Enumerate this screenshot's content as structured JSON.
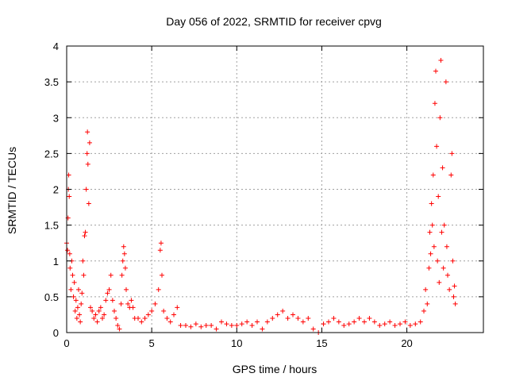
{
  "chart_data": {
    "type": "scatter",
    "title": "Day 056 of 2022, SRMTID for receiver cpvg",
    "xlabel": "GPS time / hours",
    "ylabel": "SRMTID / TECUs",
    "xlim": [
      0,
      24.5
    ],
    "ylim": [
      0,
      4
    ],
    "x_ticks": [
      0,
      5,
      10,
      15,
      20
    ],
    "x_tick_labels": [
      "0",
      "5",
      "10",
      "15",
      "20"
    ],
    "y_ticks": [
      0,
      0.5,
      1,
      1.5,
      2,
      2.5,
      3,
      3.5,
      4
    ],
    "y_tick_labels": [
      "0",
      "0.5",
      "1",
      "1.5",
      "2",
      "2.5",
      "3",
      "3.5",
      "4"
    ],
    "grid": true,
    "marker": "+",
    "color": "#ff0000",
    "series": [
      {
        "name": "SRMTID",
        "points": [
          [
            0.0,
            1.25
          ],
          [
            0.05,
            1.15
          ],
          [
            0.08,
            1.6
          ],
          [
            0.1,
            2.0
          ],
          [
            0.12,
            2.2
          ],
          [
            0.15,
            1.9
          ],
          [
            0.18,
            1.1
          ],
          [
            0.2,
            0.9
          ],
          [
            0.25,
            0.6
          ],
          [
            0.3,
            1.0
          ],
          [
            0.35,
            0.8
          ],
          [
            0.4,
            0.5
          ],
          [
            0.45,
            0.7
          ],
          [
            0.5,
            0.3
          ],
          [
            0.55,
            0.45
          ],
          [
            0.6,
            0.2
          ],
          [
            0.65,
            0.35
          ],
          [
            0.7,
            0.6
          ],
          [
            0.75,
            0.25
          ],
          [
            0.8,
            0.15
          ],
          [
            0.85,
            0.4
          ],
          [
            0.9,
            0.55
          ],
          [
            0.95,
            1.0
          ],
          [
            1.0,
            0.8
          ],
          [
            1.05,
            1.35
          ],
          [
            1.1,
            1.4
          ],
          [
            1.15,
            2.0
          ],
          [
            1.2,
            2.5
          ],
          [
            1.22,
            2.8
          ],
          [
            1.25,
            2.35
          ],
          [
            1.3,
            1.8
          ],
          [
            1.35,
            2.65
          ],
          [
            1.4,
            0.35
          ],
          [
            1.5,
            0.3
          ],
          [
            1.6,
            0.2
          ],
          [
            1.7,
            0.25
          ],
          [
            1.8,
            0.15
          ],
          [
            1.9,
            0.3
          ],
          [
            2.0,
            0.35
          ],
          [
            2.1,
            0.2
          ],
          [
            2.2,
            0.25
          ],
          [
            2.3,
            0.45
          ],
          [
            2.4,
            0.55
          ],
          [
            2.5,
            0.6
          ],
          [
            2.6,
            0.8
          ],
          [
            2.7,
            0.45
          ],
          [
            2.8,
            0.3
          ],
          [
            2.9,
            0.2
          ],
          [
            3.0,
            0.1
          ],
          [
            3.1,
            0.05
          ],
          [
            3.2,
            0.4
          ],
          [
            3.25,
            0.8
          ],
          [
            3.3,
            1.0
          ],
          [
            3.35,
            1.2
          ],
          [
            3.4,
            1.1
          ],
          [
            3.45,
            0.9
          ],
          [
            3.5,
            0.6
          ],
          [
            3.6,
            0.4
          ],
          [
            3.7,
            0.35
          ],
          [
            3.8,
            0.45
          ],
          [
            3.9,
            0.35
          ],
          [
            4.0,
            0.2
          ],
          [
            4.2,
            0.2
          ],
          [
            4.4,
            0.15
          ],
          [
            4.6,
            0.2
          ],
          [
            4.8,
            0.25
          ],
          [
            5.0,
            0.3
          ],
          [
            5.2,
            0.4
          ],
          [
            5.4,
            0.6
          ],
          [
            5.5,
            1.15
          ],
          [
            5.55,
            1.25
          ],
          [
            5.6,
            0.8
          ],
          [
            5.7,
            0.3
          ],
          [
            5.9,
            0.2
          ],
          [
            6.1,
            0.15
          ],
          [
            6.3,
            0.25
          ],
          [
            6.5,
            0.35
          ],
          [
            6.7,
            0.1
          ],
          [
            7.0,
            0.1
          ],
          [
            7.3,
            0.08
          ],
          [
            7.6,
            0.12
          ],
          [
            7.9,
            0.08
          ],
          [
            8.2,
            0.1
          ],
          [
            8.5,
            0.1
          ],
          [
            8.8,
            0.05
          ],
          [
            9.1,
            0.15
          ],
          [
            9.4,
            0.12
          ],
          [
            9.7,
            0.1
          ],
          [
            10.0,
            0.1
          ],
          [
            10.3,
            0.12
          ],
          [
            10.6,
            0.15
          ],
          [
            10.9,
            0.1
          ],
          [
            11.2,
            0.15
          ],
          [
            11.5,
            0.05
          ],
          [
            11.8,
            0.15
          ],
          [
            12.1,
            0.2
          ],
          [
            12.4,
            0.25
          ],
          [
            12.7,
            0.3
          ],
          [
            13.0,
            0.2
          ],
          [
            13.3,
            0.25
          ],
          [
            13.6,
            0.2
          ],
          [
            13.9,
            0.15
          ],
          [
            14.2,
            0.2
          ],
          [
            14.5,
            0.05
          ],
          [
            14.8,
            0.0
          ],
          [
            15.1,
            0.12
          ],
          [
            15.4,
            0.15
          ],
          [
            15.7,
            0.2
          ],
          [
            16.0,
            0.15
          ],
          [
            16.3,
            0.1
          ],
          [
            16.6,
            0.12
          ],
          [
            16.9,
            0.15
          ],
          [
            17.2,
            0.2
          ],
          [
            17.5,
            0.15
          ],
          [
            17.8,
            0.2
          ],
          [
            18.1,
            0.15
          ],
          [
            18.4,
            0.1
          ],
          [
            18.7,
            0.12
          ],
          [
            19.0,
            0.15
          ],
          [
            19.3,
            0.1
          ],
          [
            19.6,
            0.12
          ],
          [
            19.9,
            0.15
          ],
          [
            20.2,
            0.1
          ],
          [
            20.5,
            0.12
          ],
          [
            20.8,
            0.15
          ],
          [
            21.0,
            0.3
          ],
          [
            21.1,
            0.6
          ],
          [
            21.2,
            0.4
          ],
          [
            21.3,
            0.9
          ],
          [
            21.35,
            1.4
          ],
          [
            21.4,
            1.1
          ],
          [
            21.45,
            1.8
          ],
          [
            21.5,
            1.5
          ],
          [
            21.55,
            2.2
          ],
          [
            21.6,
            1.2
          ],
          [
            21.65,
            3.2
          ],
          [
            21.7,
            3.65
          ],
          [
            21.75,
            2.6
          ],
          [
            21.8,
            1.0
          ],
          [
            21.85,
            1.9
          ],
          [
            21.9,
            0.7
          ],
          [
            21.95,
            3.0
          ],
          [
            22.0,
            3.8
          ],
          [
            22.05,
            1.4
          ],
          [
            22.1,
            2.3
          ],
          [
            22.15,
            0.9
          ],
          [
            22.2,
            1.5
          ],
          [
            22.3,
            3.5
          ],
          [
            22.35,
            1.2
          ],
          [
            22.4,
            0.8
          ],
          [
            22.5,
            0.6
          ],
          [
            22.6,
            2.2
          ],
          [
            22.65,
            2.5
          ],
          [
            22.7,
            1.0
          ],
          [
            22.75,
            0.5
          ],
          [
            22.8,
            0.65
          ],
          [
            22.85,
            0.4
          ]
        ]
      }
    ]
  }
}
